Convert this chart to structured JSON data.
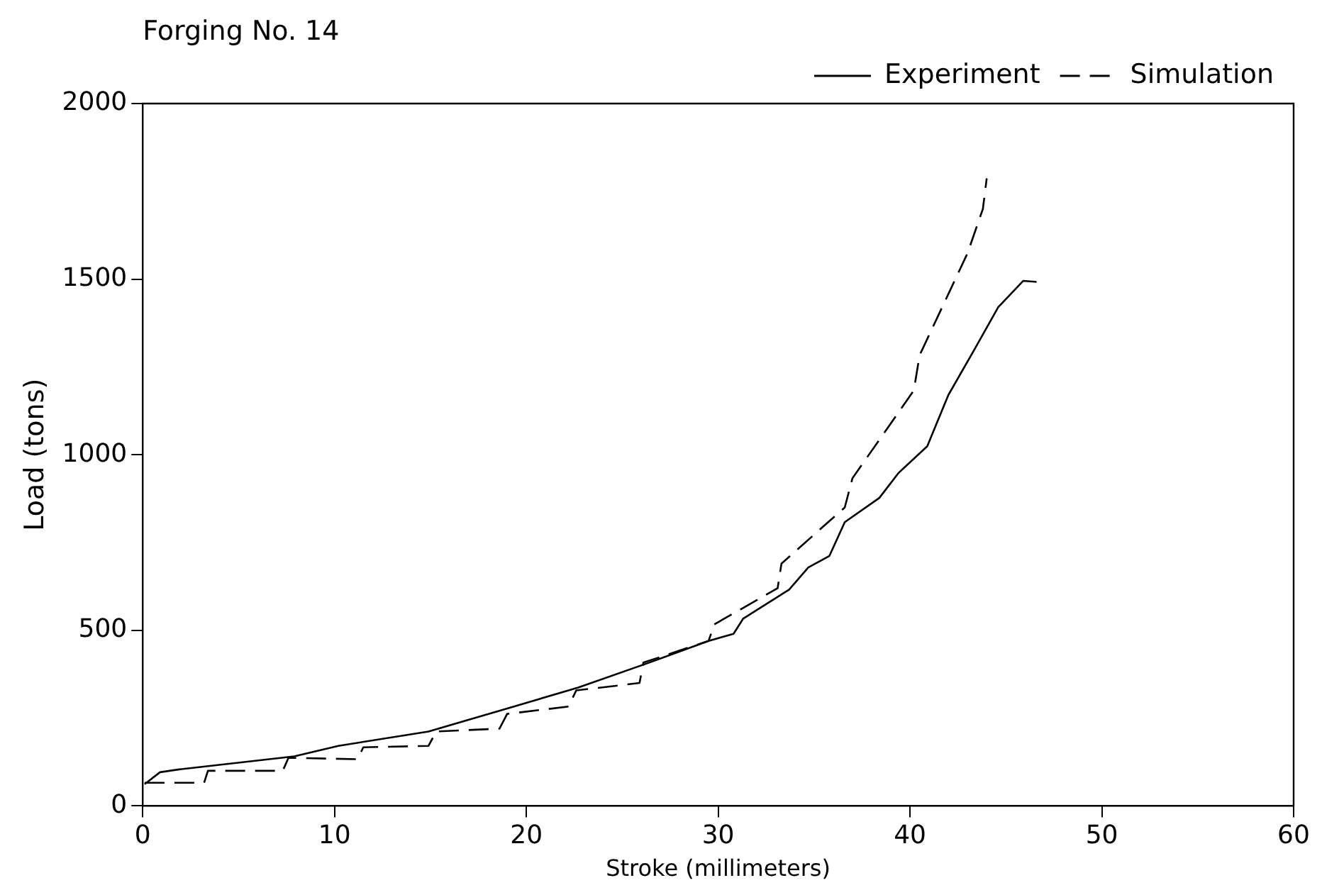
{
  "chart_data": {
    "type": "line",
    "title": "Forging No. 14",
    "xlabel": "Stroke (millimeters)",
    "ylabel": "Load (tons)",
    "xlim": [
      0,
      60
    ],
    "xticks": [
      0,
      10,
      20,
      30,
      40,
      50,
      60
    ],
    "ylim": [
      0,
      2000
    ],
    "yticks": [
      0,
      500,
      1000,
      1500,
      2000
    ],
    "grid": false,
    "legend": "top right",
    "marker": "none",
    "series": [
      {
        "name": "Experiment",
        "color": "#000000",
        "line_style": "solid",
        "x": [
          0.1,
          0.9,
          1.9,
          7.9,
          10.2,
          14.9,
          19.1,
          22.7,
          26.4,
          27.4,
          29.5,
          30.8,
          31.3,
          33.7,
          34.7,
          35.8,
          36.6,
          38.4,
          39.4,
          40.9,
          42.0,
          43.3,
          44.6,
          45.9,
          46.6
        ],
        "values": [
          62,
          96,
          104,
          141,
          171,
          212,
          279,
          337,
          408,
          428,
          470,
          490,
          533,
          616,
          679,
          712,
          808,
          877,
          948,
          1024,
          1170,
          1294,
          1420,
          1495,
          1492
        ]
      },
      {
        "name": "Simulation",
        "color": "#000000",
        "line_style": "dashed",
        "x": [
          0.1,
          3.2,
          3.4,
          7.3,
          7.6,
          11.2,
          11.5,
          14.9,
          15.3,
          18.6,
          19.0,
          22.2,
          22.6,
          25.9,
          26.1,
          29.5,
          29.8,
          33.1,
          33.3,
          36.6,
          37.0,
          40.2,
          40.5,
          43.0,
          43.8,
          44.0
        ],
        "values": [
          66,
          66,
          100,
          100,
          137,
          133,
          167,
          171,
          212,
          220,
          262,
          283,
          329,
          350,
          408,
          470,
          517,
          620,
          690,
          850,
          933,
          1183,
          1283,
          1574,
          1700,
          1787
        ]
      }
    ]
  }
}
